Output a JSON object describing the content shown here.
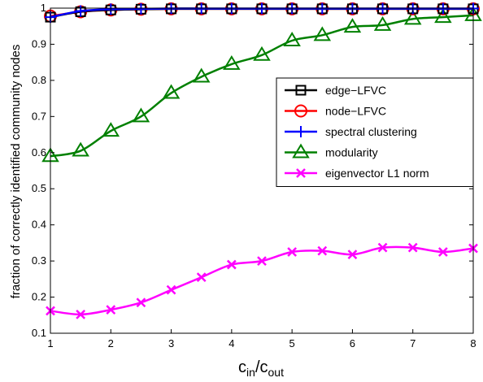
{
  "chart_data": {
    "type": "line",
    "title": "",
    "xlabel": {
      "main": "c",
      "sub1": "in",
      "slash": "/c",
      "sub2": "out"
    },
    "ylabel": "fraction of correctly identified community nodes",
    "xlim": [
      1,
      8
    ],
    "ylim": [
      0.1,
      1
    ],
    "x_ticks": [
      1,
      2,
      3,
      4,
      5,
      6,
      7,
      8
    ],
    "y_ticks": [
      0.1,
      0.2,
      0.3,
      0.4,
      0.5,
      0.6,
      0.7,
      0.8,
      0.9,
      1
    ],
    "y_tick_labels": [
      "0.1",
      "0.2",
      "0.3",
      "0.4",
      "0.5",
      "0.6",
      "0.7",
      "0.8",
      "0.9",
      "1"
    ],
    "x": [
      1,
      1.5,
      2,
      2.5,
      3,
      3.5,
      4,
      4.5,
      5,
      5.5,
      6,
      6.5,
      7,
      7.5,
      8
    ],
    "grid": false,
    "legend_position": "right",
    "series": [
      {
        "name": "edge−LFVC",
        "color": "#000000",
        "marker": "square",
        "values": [
          0.975,
          0.99,
          0.995,
          0.997,
          0.998,
          0.998,
          0.998,
          0.998,
          0.998,
          0.998,
          0.998,
          0.998,
          0.998,
          0.998,
          0.998
        ]
      },
      {
        "name": "node−LFVC",
        "color": "#ff0000",
        "marker": "circle",
        "values": [
          0.978,
          0.99,
          0.995,
          0.997,
          0.998,
          0.998,
          0.998,
          0.998,
          0.998,
          0.998,
          0.998,
          0.998,
          0.998,
          0.998,
          0.998
        ]
      },
      {
        "name": "spectral clustering",
        "color": "#0000ff",
        "marker": "plus",
        "values": [
          0.975,
          0.992,
          0.997,
          0.998,
          0.999,
          0.999,
          0.999,
          0.999,
          0.999,
          0.999,
          0.999,
          0.999,
          0.999,
          0.999,
          0.999
        ]
      },
      {
        "name": "modularity",
        "color": "#008000",
        "marker": "triangle",
        "values": [
          0.59,
          0.605,
          0.66,
          0.7,
          0.765,
          0.81,
          0.845,
          0.87,
          0.91,
          0.925,
          0.948,
          0.953,
          0.97,
          0.975,
          0.98
        ]
      },
      {
        "name": "eigenvector L1 norm",
        "color": "#ff00ff",
        "marker": "x",
        "values": [
          0.162,
          0.152,
          0.165,
          0.185,
          0.22,
          0.255,
          0.29,
          0.3,
          0.325,
          0.328,
          0.318,
          0.337,
          0.337,
          0.325,
          0.335
        ]
      }
    ]
  }
}
